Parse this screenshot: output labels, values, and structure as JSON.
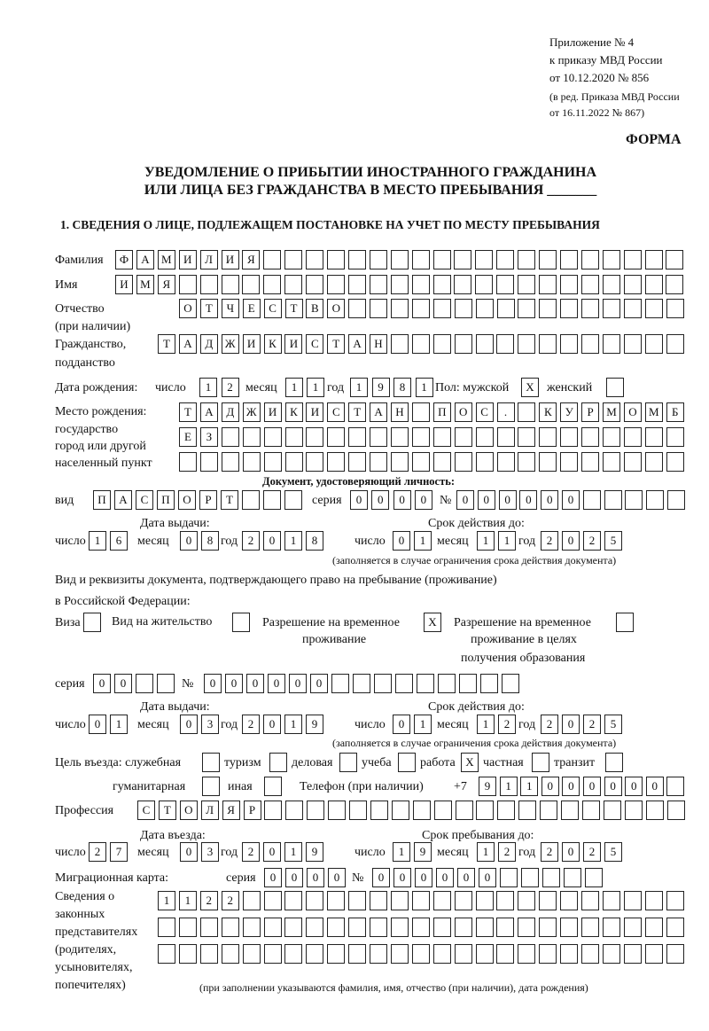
{
  "header": {
    "line1": "Приложение № 4",
    "line2": "к приказу МВД России",
    "line3": "от 10.12.2020 № 856",
    "line4": "(в ред. Приказа МВД России",
    "line5": "от 16.11.2022 № 867)",
    "form_label": "ФОРМА"
  },
  "title": {
    "line1": "УВЕДОМЛЕНИЕ О ПРИБЫТИИ ИНОСТРАННОГО ГРАЖДАНИНА",
    "line2": "ИЛИ ЛИЦА БЕЗ ГРАЖДАНСТВА В МЕСТО ПРЕБЫВАНИЯ _______"
  },
  "section1": {
    "heading": "1. СВЕДЕНИЯ О ЛИЦЕ, ПОДЛЕЖАЩЕМ ПОСТАНОВКЕ НА УЧЕТ ПО МЕСТУ ПРЕБЫВАНИЯ",
    "surname": {
      "label": "Фамилия",
      "value": "ФАМИЛИЯ"
    },
    "name": {
      "label": "Имя",
      "value": "ИМЯ"
    },
    "patronymic": {
      "label": "Отчество",
      "label2": "(при наличии)",
      "value": "ОТЧЕСТВО"
    },
    "citizenship": {
      "label": "Гражданство,",
      "label2": "подданство",
      "value": "ТАДЖИКИСТАН"
    },
    "birth_date": {
      "label": "Дата рождения:",
      "day_label": "число",
      "month_label": "месяц",
      "year_label": "год",
      "day": "12",
      "month": "11",
      "year": "1981"
    },
    "sex": {
      "label": "Пол: мужской",
      "male": "X",
      "female_label": "женский",
      "female": ""
    },
    "birthplace": {
      "label1": "Место рождения:",
      "label2": "государство",
      "label3": "город или другой",
      "label4": "населенный пункт",
      "row1": "ТАДЖИКИСТАН ПОС. КУРМОМБ",
      "row2": "ЕЗ",
      "row3": ""
    },
    "identity_doc": {
      "heading": "Документ, удостоверяющий личность:",
      "kind_label": "вид",
      "kind": "ПАСПОРТ",
      "series_label": "серия",
      "series": "0000",
      "number_label": "№",
      "number": "000000",
      "issue_label": "Дата выдачи:",
      "valid_label": "Срок действия до:",
      "day_label": "число",
      "month_label": "месяц",
      "year_label": "год",
      "issue_day": "16",
      "issue_month": "08",
      "issue_year": "2018",
      "valid_day": "01",
      "valid_month": "11",
      "valid_year": "2025",
      "note": "(заполняется в случае ограничения срока действия документа)"
    },
    "stay_doc": {
      "heading1": "Вид и реквизиты документа, подтверждающего право на пребывание (проживание)",
      "heading2": "в Российской Федерации:",
      "visa_label": "Виза",
      "visa": "",
      "residence_label": "Вид на жительство",
      "residence": "",
      "trp_label1": "Разрешение на временное",
      "trp_label2": "проживание",
      "trp": "X",
      "trp_edu_label1": "Разрешение на временное",
      "trp_edu_label2": "проживание в целях",
      "trp_edu_label3": "получения образования",
      "trp_edu": "",
      "series_label": "серия",
      "series": "00",
      "number_label": "№",
      "number": "000000",
      "issue_label": "Дата выдачи:",
      "valid_label": "Срок действия до:",
      "day_label": "число",
      "month_label": "месяц",
      "year_label": "год",
      "issue_day": "01",
      "issue_month": "03",
      "issue_year": "2019",
      "valid_day": "01",
      "valid_month": "12",
      "valid_year": "2025",
      "note": "(заполняется в случае ограничения срока действия документа)"
    },
    "purpose": {
      "label": "Цель въезда: служебная",
      "official": "",
      "tourism_label": "туризм",
      "tourism": "",
      "business_label": "деловая",
      "business": "",
      "study_label": "учеба",
      "study": "",
      "work_label": "работа",
      "work": "X",
      "private_label": "частная",
      "private": "",
      "transit_label": "транзит",
      "transit": "",
      "humanitarian_label": "гуманитарная",
      "humanitarian": "",
      "other_label": "иная",
      "other": ""
    },
    "phone": {
      "label": "Телефон (при наличии)",
      "prefix": "+7",
      "value": "911000000"
    },
    "profession": {
      "label": "Профессия",
      "value": "СТОЛЯР"
    },
    "entry": {
      "entry_label": "Дата въезда:",
      "stay_label": "Срок пребывания до:",
      "day_label": "число",
      "month_label": "месяц",
      "year_label": "год",
      "entry_day": "27",
      "entry_month": "03",
      "entry_year": "2019",
      "stay_day": "19",
      "stay_month": "12",
      "stay_year": "2025"
    },
    "migration_card": {
      "label": "Миграционная карта:",
      "series_label": "серия",
      "series": "0000",
      "number_label": "№",
      "number": "000000"
    },
    "representatives": {
      "label1": "Сведения о",
      "label2": "законных",
      "label3": "представителях",
      "label4": "(родителях,",
      "label5": "усыновителях,",
      "label6": "попечителях)",
      "row1": "1122",
      "row2": "",
      "row3": "",
      "note": "(при заполнении указываются фамилия, имя, отчество (при наличии), дата рождения)"
    }
  }
}
